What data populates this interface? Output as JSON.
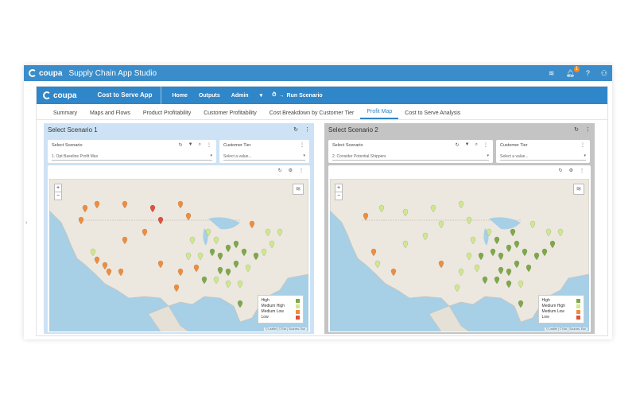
{
  "studio": {
    "brand": "coupa",
    "title": "Supply Chain App Studio",
    "notification_count": "1"
  },
  "app": {
    "brand": "coupa",
    "name": "Cost to Serve App",
    "nav": [
      "Home",
      "Outputs",
      "Admin"
    ],
    "run_label": "Run Scenario"
  },
  "tabs": [
    "Summary",
    "Maps and Flows",
    "Product Profitability",
    "Customer Profitability",
    "Cost Breakdown by Customer Tier",
    "Profit Map",
    "Cost to Serve Analysis"
  ],
  "active_tab": "Profit Map",
  "colors": {
    "high": "#7ea84a",
    "medium_high": "#cfe88d",
    "medium_low": "#ef8d3e",
    "low": "#e0513c",
    "accent": "#2f86c8"
  },
  "panel1": {
    "title": "Select Scenario 1",
    "scenario_label": "Select Scenario",
    "scenario_value": "1. Opt Baseline Profit Max",
    "tier_label": "Customer Tier",
    "tier_placeholder": "Select a value..."
  },
  "panel2": {
    "title": "Select Scenario 2",
    "scenario_label": "Select Scenario",
    "scenario_value": "2. Consider Potential Shippers",
    "tier_label": "Customer Tier",
    "tier_placeholder": "Select a value..."
  },
  "legend": [
    {
      "label": "High",
      "key": "high"
    },
    {
      "label": "Medium High",
      "key": "medium_high"
    },
    {
      "label": "Medium Low",
      "key": "medium_low"
    },
    {
      "label": "Low",
      "key": "low"
    }
  ],
  "attribution": "© Leaflet | © Esri | Sources: Esri"
}
